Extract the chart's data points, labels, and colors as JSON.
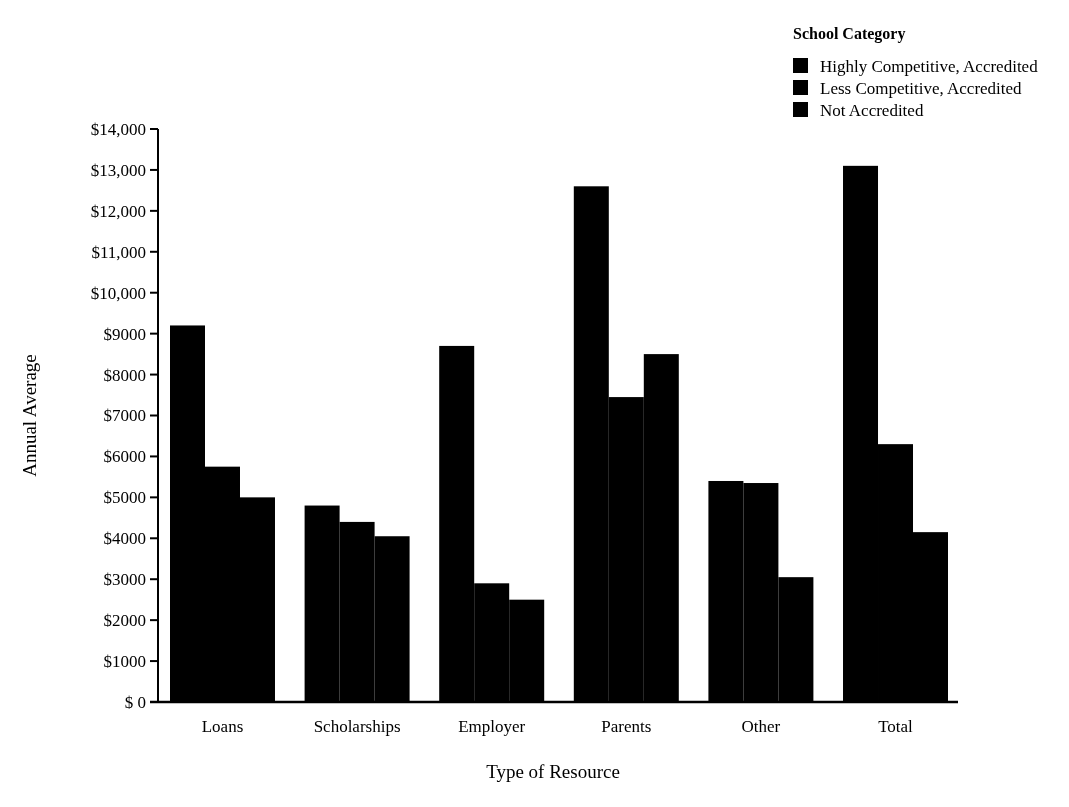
{
  "chart_data": {
    "type": "bar",
    "xlabel": "Type of Resource",
    "ylabel": "Annual Average",
    "legend_title": "School Category",
    "legend": "top right",
    "categories": [
      "Loans",
      "Scholarships",
      "Employer",
      "Parents",
      "Other",
      "Total"
    ],
    "series": [
      {
        "name": "Highly Competitive, Accredited",
        "color": "#000000",
        "values": [
          9200,
          4800,
          8700,
          12600,
          5400,
          13100
        ]
      },
      {
        "name": "Less Competitive, Accredited",
        "color": "#000000",
        "values": [
          5750,
          4400,
          2900,
          7450,
          5350,
          6300
        ]
      },
      {
        "name": "Not Accredited",
        "color": "#000000",
        "values": [
          5000,
          4050,
          2500,
          8500,
          3050,
          4150
        ]
      }
    ],
    "ylim": [
      0,
      14000
    ],
    "yticks": [
      {
        "value": 0,
        "label": "$ 0"
      },
      {
        "value": 1000,
        "label": "$1000"
      },
      {
        "value": 2000,
        "label": "$2000"
      },
      {
        "value": 3000,
        "label": "$3000"
      },
      {
        "value": 4000,
        "label": "$4000"
      },
      {
        "value": 5000,
        "label": "$5000"
      },
      {
        "value": 6000,
        "label": "$6000"
      },
      {
        "value": 7000,
        "label": "$7000"
      },
      {
        "value": 8000,
        "label": "$8000"
      },
      {
        "value": 9000,
        "label": "$9000"
      },
      {
        "value": 10000,
        "label": "$10,000"
      },
      {
        "value": 11000,
        "label": "$11,000"
      },
      {
        "value": 12000,
        "label": "$12,000"
      },
      {
        "value": 13000,
        "label": "$13,000"
      },
      {
        "value": 14000,
        "label": "$14,000"
      }
    ],
    "grid": false
  }
}
